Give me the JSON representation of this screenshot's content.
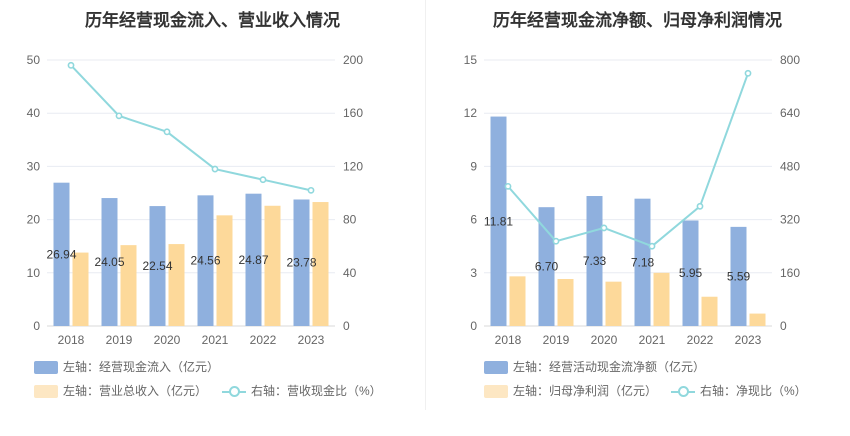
{
  "colors": {
    "bar1": "#8fb0de",
    "bar2": "#fdd99a",
    "line": "#90d8dd",
    "legend_bar2": "#fde7c3"
  },
  "chart_data": [
    {
      "type": "bar",
      "title": "历年经营现金流入、营业收入情况",
      "categories": [
        "2018",
        "2019",
        "2020",
        "2021",
        "2022",
        "2023"
      ],
      "series": [
        {
          "name": "左轴：经营现金流入（亿元）",
          "axis": "left",
          "kind": "bar",
          "values": [
            26.94,
            24.05,
            22.54,
            24.56,
            24.87,
            23.78
          ],
          "labels": [
            "26.94",
            "24.05",
            "22.54",
            "24.56",
            "24.87",
            "23.78"
          ]
        },
        {
          "name": "左轴：营业总收入（亿元）",
          "axis": "left",
          "kind": "bar",
          "values": [
            13.8,
            15.2,
            15.4,
            20.8,
            22.6,
            23.3
          ]
        },
        {
          "name": "右轴：营收现金比（%）",
          "axis": "right",
          "kind": "line",
          "values": [
            196,
            158,
            146,
            118,
            110,
            102
          ]
        }
      ],
      "ylim_left": [
        0,
        50
      ],
      "yticks_left": [
        "0",
        "10",
        "20",
        "30",
        "40",
        "50"
      ],
      "ylim_right": [
        0,
        200
      ],
      "yticks_right": [
        "0",
        "40",
        "80",
        "120",
        "160",
        "200"
      ],
      "grid": true,
      "legend_position": "bottom-left"
    },
    {
      "type": "bar",
      "title": "历年经营现金流净额、归母净利润情况",
      "categories": [
        "2018",
        "2019",
        "2020",
        "2021",
        "2022",
        "2023"
      ],
      "series": [
        {
          "name": "左轴：经营活动现金流净额（亿元）",
          "axis": "left",
          "kind": "bar",
          "values": [
            11.81,
            6.7,
            7.33,
            7.18,
            5.95,
            5.59
          ],
          "labels": [
            "11.81",
            "6.70",
            "7.33",
            "7.18",
            "5.95",
            "5.59"
          ]
        },
        {
          "name": "左轴：归母净利润（亿元）",
          "axis": "left",
          "kind": "bar",
          "values": [
            2.8,
            2.65,
            2.5,
            3.0,
            1.65,
            0.7
          ]
        },
        {
          "name": "右轴：净现比（%）",
          "axis": "right",
          "kind": "line",
          "values": [
            420,
            255,
            295,
            240,
            360,
            760
          ]
        }
      ],
      "ylim_left": [
        0,
        15
      ],
      "yticks_left": [
        "0",
        "3",
        "6",
        "9",
        "12",
        "15"
      ],
      "ylim_right": [
        0,
        800
      ],
      "yticks_right": [
        "0",
        "160",
        "320",
        "480",
        "640",
        "800"
      ],
      "grid": true,
      "legend_position": "bottom-left"
    }
  ]
}
